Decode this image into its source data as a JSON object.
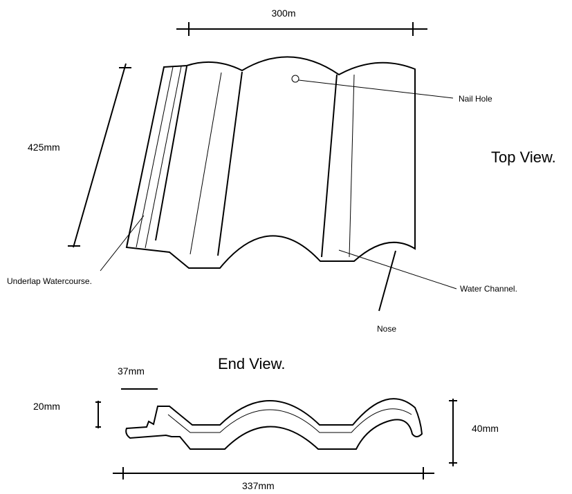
{
  "top_view": {
    "title": "Top View.",
    "width": "300m",
    "length": "425mm",
    "callouts": {
      "nail_hole": "Nail Hole",
      "underlap": "Underlap Watercourse.",
      "water_channel": "Water Channel.",
      "nose": "Nose"
    }
  },
  "end_view": {
    "title": "End View.",
    "lap": "37mm",
    "lap_height": "20mm",
    "height": "40mm",
    "width": "337mm"
  }
}
